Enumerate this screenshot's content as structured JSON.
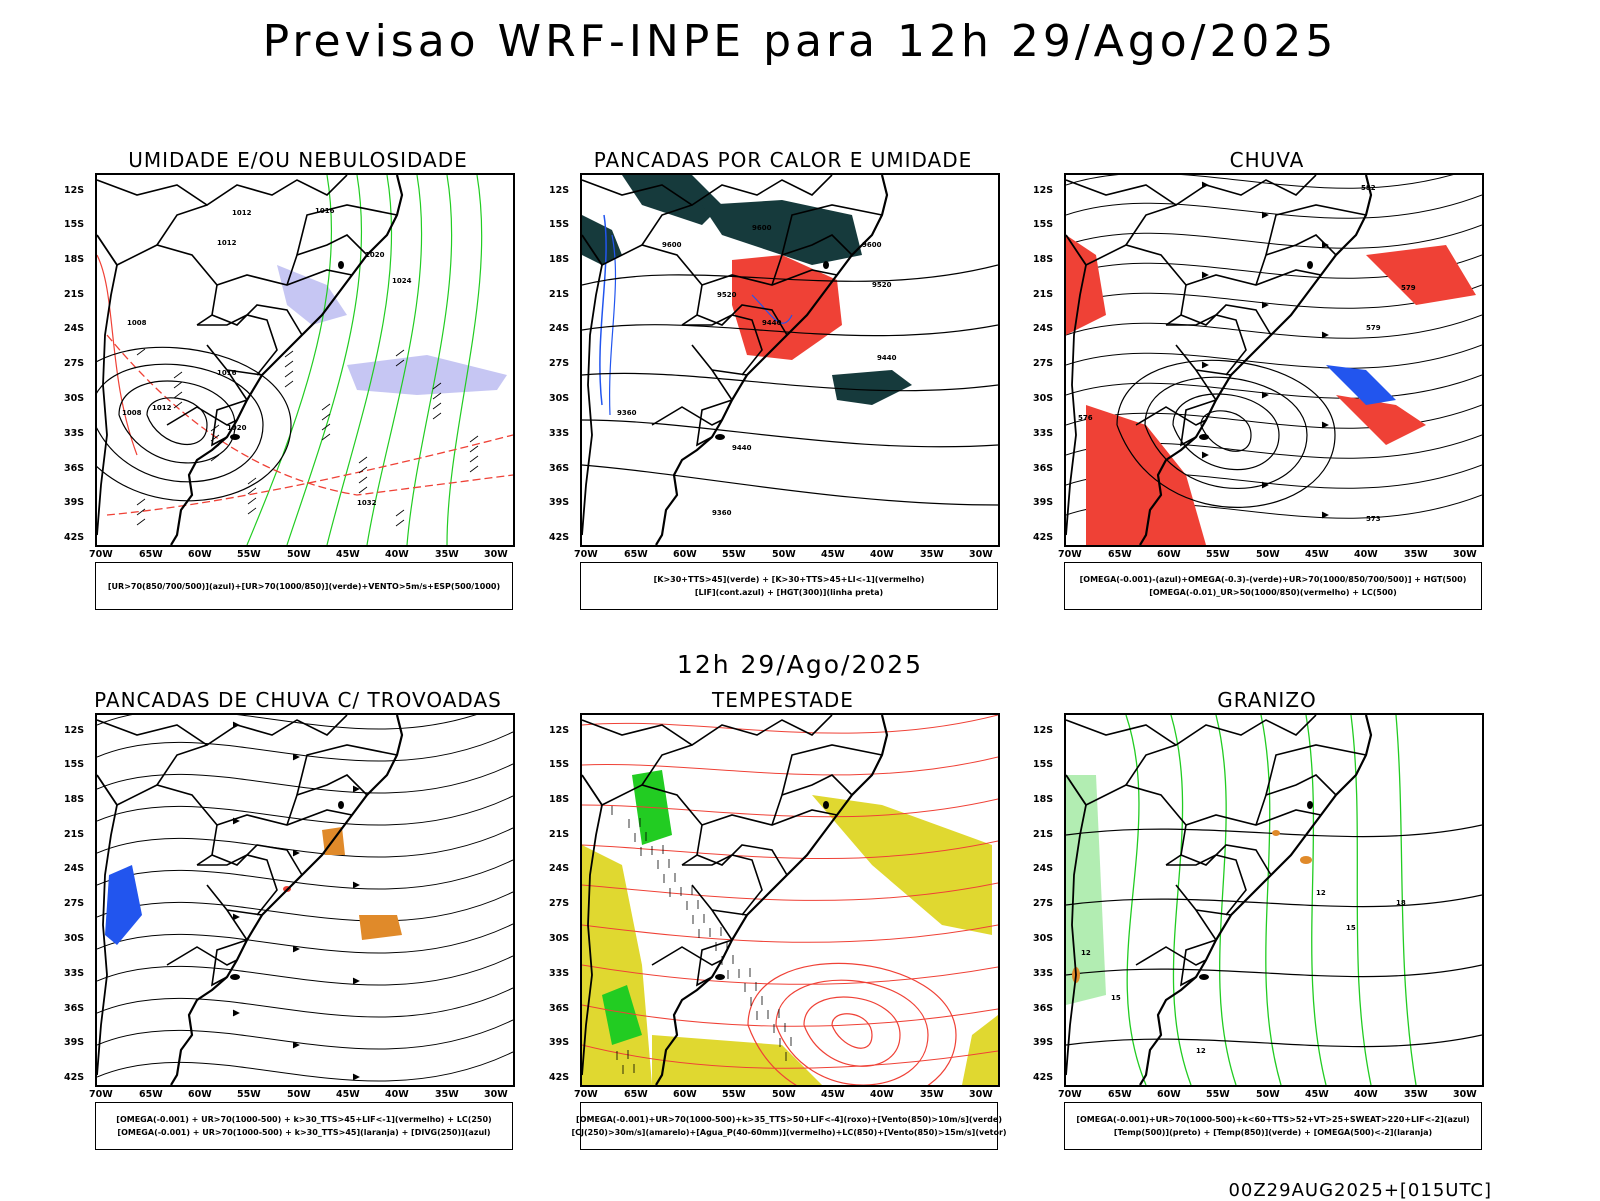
{
  "header": {
    "title": "Previsao WRF-INPE  para 12h 29/Ago/2025"
  },
  "mid_title": "12h 29/Ago/2025",
  "footer": {
    "code": "00Z29AUG2025+[015UTC]"
  },
  "axes": {
    "lat_labels": [
      "12S",
      "15S",
      "18S",
      "21S",
      "24S",
      "27S",
      "30S",
      "33S",
      "36S",
      "39S",
      "42S"
    ],
    "lon_labels": [
      "70W",
      "65W",
      "60W",
      "55W",
      "50W",
      "45W",
      "40W",
      "35W",
      "30W"
    ]
  },
  "colors": {
    "red": "#ef4136",
    "green": "#22cc22",
    "blue": "#2255ee",
    "lavender": "#b8b8f0",
    "darkteal": "#163a3c",
    "yellow": "#e0d830",
    "orange": "#e08a2a",
    "black": "#000000"
  },
  "panels": [
    {
      "title": "UMIDADE E/OU NEBULOSIDADE",
      "legend": [
        "[UR>70(850/700/500)](azul)+[UR>70(1000/850)](verde)+VENTO>5m/s+ESP(500/1000)"
      ],
      "contour_labels": [
        "1012",
        "1016",
        "1020",
        "1012",
        "1008",
        "1016",
        "1020",
        "1024",
        "1032",
        "1008",
        "1012"
      ]
    },
    {
      "title": "PANCADAS POR CALOR E UMIDADE",
      "legend": [
        "[K>30+TTS>45](verde) + [K>30+TTS>45+LI<-1](vermelho)",
        "[LIF](cont.azul) + [HGT(300)](linha preta)"
      ],
      "contour_labels": [
        "9600",
        "9600",
        "9600",
        "9520",
        "9520",
        "9440",
        "9440",
        "9440",
        "9360",
        "9360"
      ]
    },
    {
      "title": "CHUVA",
      "legend": [
        "[OMEGA(-0.001)-(azul)+OMEGA(-0.3)-(verde)+UR>70(1000/850/700/500)] + HGT(500)",
        "[OMEGA(-0.01)_UR>50(1000/850)(vermelho) + LC(500)"
      ],
      "contour_labels": [
        "582",
        "579",
        "579",
        "576",
        "573"
      ]
    },
    {
      "title": "PANCADAS DE CHUVA C/ TROVOADAS",
      "legend": [
        "[OMEGA(-0.001) + UR>70(1000-500) + k>30_TTS>45+LIF<-1](vermelho) + LC(250)",
        "[OMEGA(-0.001) + UR>70(1000-500) + k>30_TTS>45](laranja) + [DIVG(250)](azul)"
      ],
      "contour_labels": []
    },
    {
      "title": "TEMPESTADE",
      "legend": [
        "[OMEGA(-0.001)+UR>70(1000-500)+k>35_TTS>50+LIF<-4](roxo)+[Vento(850)>10m/s](verde)",
        "[CJ(250)>30m/s](amarelo)+[Agua_P(40-60mm)](vermelho)+LC(850)+[Vento(850)>15m/s](vetor)"
      ],
      "contour_labels": []
    },
    {
      "title": "GRANIZO",
      "legend": [
        "[OMEGA(-0.001)+UR>70(1000-500)+k<60+TTS>52+VT>25+SWEAT>220+LIF<-2](azul)",
        "[Temp(500)](preto) + [Temp(850)](verde) + [OMEGA(500)<-2](laranja)"
      ],
      "contour_labels": [
        "18",
        "12",
        "15",
        "12",
        "15",
        "12"
      ]
    }
  ]
}
